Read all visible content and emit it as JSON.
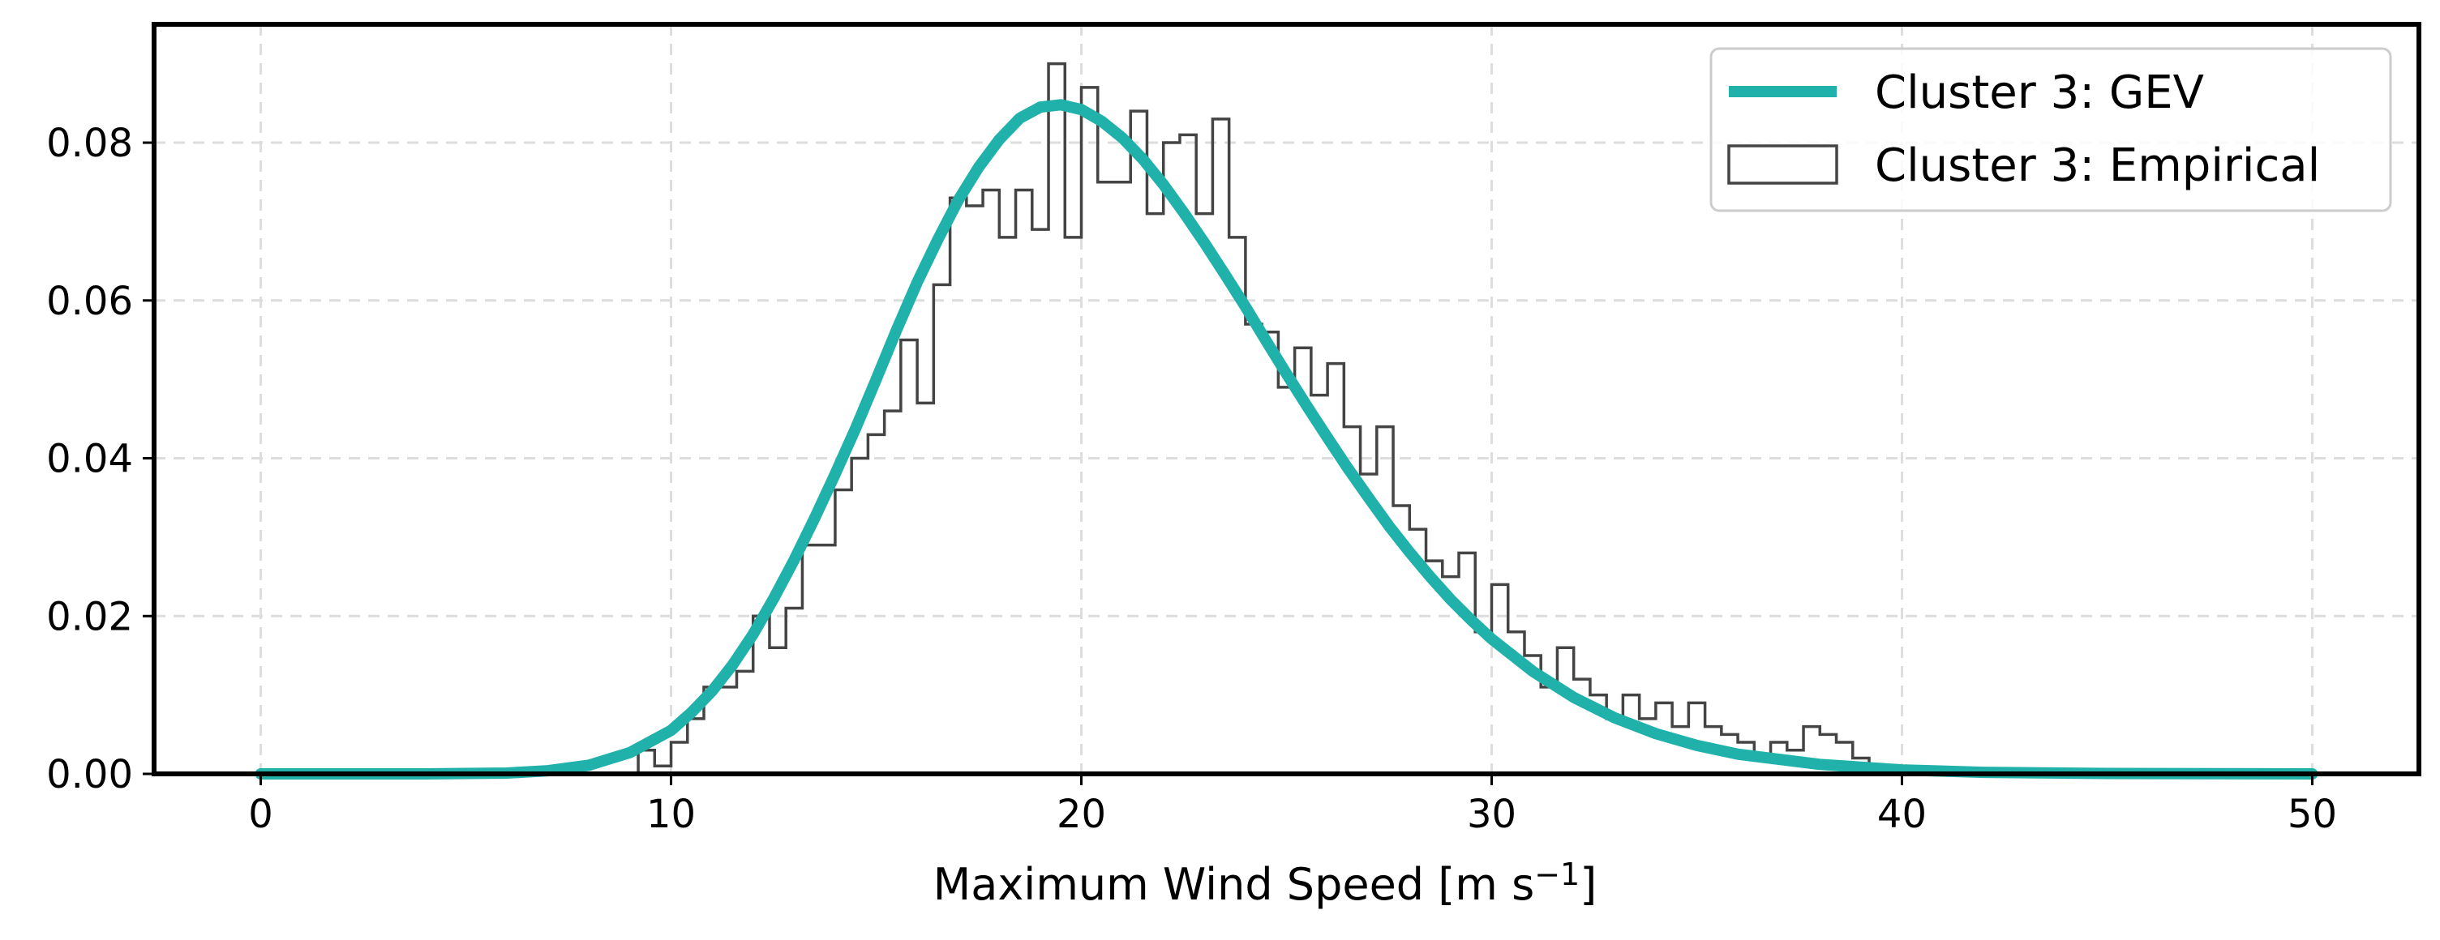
{
  "chart_data": {
    "type": "histogram+line",
    "title": "",
    "xlabel": "Maximum Wind Speed [m s",
    "xlabel_sup": "−1",
    "xlabel_close": "]",
    "ylabel": "",
    "xlim": [
      -2.6,
      52.6
    ],
    "ylim": [
      0.0,
      0.095
    ],
    "xticks": [
      0,
      10,
      20,
      30,
      40,
      50
    ],
    "xtick_labels": [
      "0",
      "10",
      "20",
      "30",
      "40",
      "50"
    ],
    "yticks": [
      0.0,
      0.02,
      0.04,
      0.06,
      0.08
    ],
    "ytick_labels": [
      "0.00",
      "0.02",
      "0.04",
      "0.06",
      "0.08"
    ],
    "grid": true,
    "legend_position": "top-right",
    "series": [
      {
        "name": "Cluster 3: GEV",
        "kind": "line",
        "color": "#20b2aa",
        "x": [
          0,
          2,
          4,
          6,
          7,
          8,
          9,
          10,
          10.5,
          11,
          11.5,
          12,
          12.5,
          13,
          13.5,
          14,
          14.5,
          15,
          15.5,
          16,
          16.5,
          17,
          17.5,
          18,
          18.5,
          19,
          19.5,
          20,
          20.5,
          21,
          21.5,
          22,
          22.5,
          23,
          23.5,
          24,
          24.5,
          25,
          25.5,
          26,
          26.5,
          27,
          27.5,
          28,
          28.5,
          29,
          29.5,
          30,
          31,
          32,
          33,
          34,
          35,
          36,
          38,
          40,
          42,
          45,
          50
        ],
        "y": [
          0.0,
          0.0,
          0.0,
          0.0001,
          0.0004,
          0.0011,
          0.0027,
          0.0055,
          0.0078,
          0.0105,
          0.0138,
          0.0177,
          0.0222,
          0.0271,
          0.0324,
          0.038,
          0.0438,
          0.05,
          0.0563,
          0.0623,
          0.0677,
          0.0727,
          0.0769,
          0.0804,
          0.0831,
          0.0845,
          0.0848,
          0.0842,
          0.0827,
          0.0806,
          0.0779,
          0.0747,
          0.0711,
          0.0673,
          0.0633,
          0.0592,
          0.0549,
          0.0507,
          0.0466,
          0.0426,
          0.0387,
          0.035,
          0.0314,
          0.0281,
          0.025,
          0.0221,
          0.0195,
          0.0171,
          0.013,
          0.0097,
          0.0071,
          0.0051,
          0.0036,
          0.0025,
          0.0012,
          0.0005,
          0.0002,
          5e-05,
          0.0
        ]
      },
      {
        "name": "Cluster 3: Empirical",
        "kind": "step-histogram",
        "color": "#444444",
        "bin_start": 8.8,
        "bin_width": 0.4,
        "values": [
          0.0,
          0.003,
          0.001,
          0.004,
          0.007,
          0.011,
          0.011,
          0.013,
          0.02,
          0.016,
          0.021,
          0.029,
          0.029,
          0.036,
          0.04,
          0.043,
          0.046,
          0.055,
          0.047,
          0.062,
          0.073,
          0.072,
          0.074,
          0.068,
          0.074,
          0.069,
          0.09,
          0.068,
          0.087,
          0.075,
          0.075,
          0.084,
          0.071,
          0.08,
          0.081,
          0.071,
          0.083,
          0.068,
          0.057,
          0.056,
          0.049,
          0.054,
          0.048,
          0.052,
          0.044,
          0.038,
          0.044,
          0.034,
          0.031,
          0.027,
          0.025,
          0.028,
          0.018,
          0.024,
          0.018,
          0.015,
          0.011,
          0.016,
          0.012,
          0.01,
          0.007,
          0.01,
          0.007,
          0.009,
          0.006,
          0.009,
          0.006,
          0.005,
          0.004,
          0.002,
          0.004,
          0.003,
          0.006,
          0.005,
          0.004,
          0.002,
          0.001,
          0.0005,
          0.0003,
          0.0002,
          0.0003,
          0.0002,
          0.0001,
          0.0001,
          0.0,
          0.0,
          0.0,
          0.0,
          0.0,
          0.0,
          0.0,
          0.0,
          0.0,
          0.0,
          0.0,
          0.0,
          0.0,
          0.0,
          0.0,
          0.0,
          0.0,
          0.0,
          0.0,
          0.0
        ]
      }
    ]
  }
}
